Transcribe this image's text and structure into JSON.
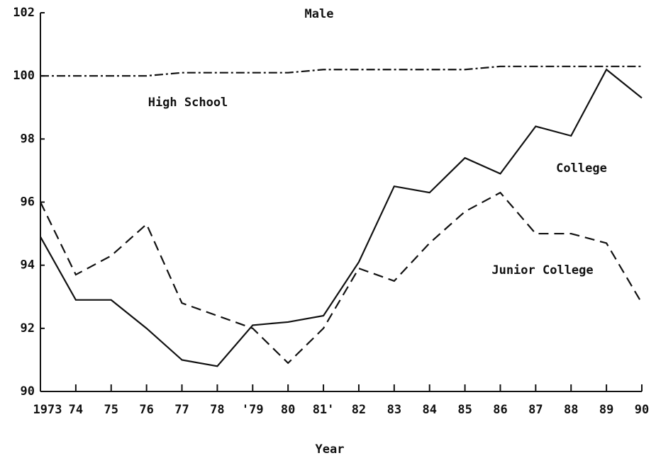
{
  "chart_data": {
    "type": "line",
    "title": "Male",
    "x_label": "Year",
    "categories": [
      "1973",
      "74",
      "75",
      "76",
      "77",
      "78",
      "'79",
      "80",
      "81'",
      "82",
      "83",
      "84",
      "85",
      "86",
      "87",
      "88",
      "89",
      "90"
    ],
    "series": [
      {
        "name": "High School",
        "color": "#111111",
        "dash": "dashdot",
        "values": [
          100,
          100,
          100,
          100,
          100.1,
          100.1,
          100.1,
          100.1,
          100.2,
          100.2,
          100.2,
          100.2,
          100.2,
          100.3,
          100.3,
          100.3,
          100.3,
          100.3
        ]
      },
      {
        "name": "College",
        "color": "#111111",
        "dash": "solid",
        "values": [
          94.9,
          92.9,
          92.9,
          92.0,
          91.0,
          90.8,
          92.1,
          92.2,
          92.4,
          94.1,
          96.5,
          96.3,
          97.4,
          96.9,
          98.4,
          98.1,
          100.2,
          99.3
        ]
      },
      {
        "name": "Junior College",
        "color": "#111111",
        "dash": "dashed",
        "values": [
          96.0,
          93.7,
          94.3,
          95.3,
          92.8,
          92.4,
          92.0,
          90.9,
          92.0,
          93.9,
          93.5,
          94.7,
          95.7,
          96.3,
          95.0,
          95.0,
          94.7,
          92.8
        ]
      }
    ],
    "ylim": [
      90,
      102
    ],
    "yticks": [
      90,
      92,
      94,
      96,
      98,
      100,
      102
    ]
  }
}
